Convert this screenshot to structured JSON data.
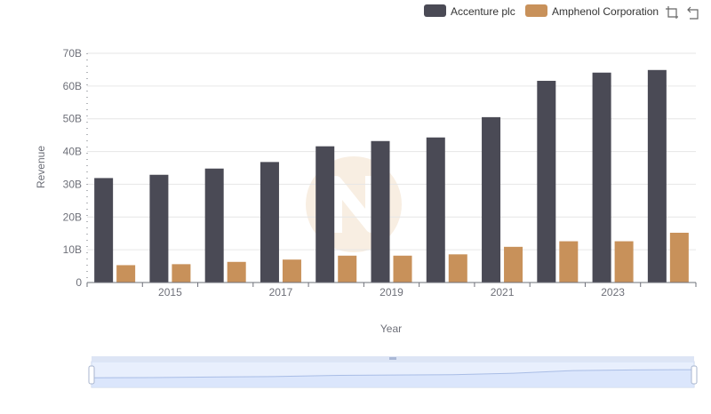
{
  "chart_data": {
    "type": "bar",
    "title": "",
    "xlabel": "Year",
    "ylabel": "Revenue",
    "x": [
      2014,
      2015,
      2016,
      2017,
      2018,
      2019,
      2020,
      2021,
      2022,
      2023,
      2024
    ],
    "x_tick_labels": [
      "2015",
      "2017",
      "2019",
      "2021",
      "2023"
    ],
    "x_tick_values": [
      2015,
      2017,
      2019,
      2021,
      2023
    ],
    "y_tick_labels": [
      "0",
      "10B",
      "20B",
      "30B",
      "40B",
      "50B",
      "60B",
      "70B"
    ],
    "ylim": [
      0,
      70000000000
    ],
    "grid": true,
    "legend_position": "top-right",
    "series": [
      {
        "name": "Accenture plc",
        "color": "#4a4a55",
        "values": [
          31900000000,
          32900000000,
          34800000000,
          36800000000,
          41600000000,
          43200000000,
          44300000000,
          50500000000,
          61600000000,
          64100000000,
          64900000000
        ]
      },
      {
        "name": "Amphenol Corporation",
        "color": "#c8915a",
        "values": [
          5300000000,
          5600000000,
          6300000000,
          7000000000,
          8200000000,
          8200000000,
          8600000000,
          10900000000,
          12600000000,
          12600000000,
          15200000000
        ]
      }
    ]
  },
  "toolbar": {
    "icons": [
      "zoom-icon",
      "restore-icon"
    ]
  },
  "zoom_slider": {
    "start_fraction": 0,
    "end_fraction": 1
  },
  "colors": {
    "grid": "#e6e6e6",
    "axis": "#6e7079",
    "slider_fill": "#d6e2fb",
    "slider_border": "#c9d4ea",
    "watermark": "#f3e1cc"
  }
}
